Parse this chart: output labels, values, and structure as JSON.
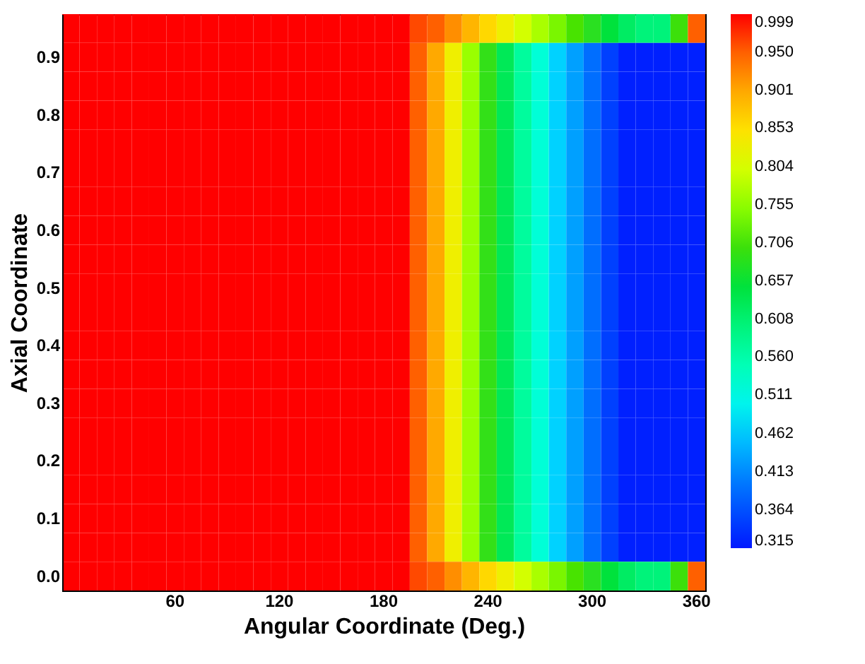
{
  "chart_data": {
    "type": "heatmap",
    "xlabel": "Angular Coordinate  (Deg.)",
    "ylabel": "Axial Coordinate",
    "categories": [
      null,
      null,
      null,
      null,
      null,
      null,
      "60",
      null,
      null,
      null,
      null,
      null,
      "120",
      null,
      null,
      null,
      null,
      null,
      "180",
      null,
      null,
      null,
      null,
      null,
      "240",
      null,
      null,
      null,
      null,
      null,
      "300",
      null,
      null,
      null,
      null,
      null,
      "360"
    ],
    "y_categories": [
      null,
      "0.9",
      null,
      "0.8",
      null,
      "0.7",
      null,
      "0.6",
      null,
      "0.5",
      null,
      "0.4",
      null,
      "0.3",
      null,
      "0.2",
      null,
      "0.1",
      null,
      "0.0"
    ],
    "cells": [
      [
        0.999,
        0.999,
        0.999,
        0.999,
        0.999,
        0.999,
        0.999,
        0.999,
        0.999,
        0.999,
        0.999,
        0.999,
        0.999,
        0.999,
        0.999,
        0.999,
        0.999,
        0.999,
        0.999,
        0.999,
        0.97,
        0.95,
        0.92,
        0.89,
        0.86,
        0.83,
        0.8,
        0.77,
        0.74,
        0.71,
        0.68,
        0.65,
        0.62,
        0.6,
        0.6,
        0.7,
        0.95
      ],
      [
        0.999,
        0.999,
        0.999,
        0.999,
        0.999,
        0.999,
        0.999,
        0.999,
        0.999,
        0.999,
        0.999,
        0.999,
        0.999,
        0.999,
        0.999,
        0.999,
        0.999,
        0.999,
        0.999,
        0.999,
        0.95,
        0.9,
        0.83,
        0.76,
        0.69,
        0.63,
        0.57,
        0.52,
        0.47,
        0.43,
        0.39,
        0.35,
        0.32,
        0.32,
        0.32,
        0.32,
        0.32
      ],
      [
        0.999,
        0.999,
        0.999,
        0.999,
        0.999,
        0.999,
        0.999,
        0.999,
        0.999,
        0.999,
        0.999,
        0.999,
        0.999,
        0.999,
        0.999,
        0.999,
        0.999,
        0.999,
        0.999,
        0.999,
        0.95,
        0.9,
        0.83,
        0.76,
        0.69,
        0.63,
        0.57,
        0.52,
        0.47,
        0.43,
        0.39,
        0.35,
        0.32,
        0.32,
        0.32,
        0.32,
        0.32
      ],
      [
        0.999,
        0.999,
        0.999,
        0.999,
        0.999,
        0.999,
        0.999,
        0.999,
        0.999,
        0.999,
        0.999,
        0.999,
        0.999,
        0.999,
        0.999,
        0.999,
        0.999,
        0.999,
        0.999,
        0.999,
        0.95,
        0.9,
        0.83,
        0.76,
        0.69,
        0.63,
        0.57,
        0.52,
        0.47,
        0.43,
        0.39,
        0.35,
        0.32,
        0.32,
        0.32,
        0.32,
        0.32
      ],
      [
        0.999,
        0.999,
        0.999,
        0.999,
        0.999,
        0.999,
        0.999,
        0.999,
        0.999,
        0.999,
        0.999,
        0.999,
        0.999,
        0.999,
        0.999,
        0.999,
        0.999,
        0.999,
        0.999,
        0.999,
        0.95,
        0.9,
        0.83,
        0.76,
        0.69,
        0.63,
        0.57,
        0.52,
        0.47,
        0.43,
        0.39,
        0.35,
        0.32,
        0.32,
        0.32,
        0.32,
        0.32
      ],
      [
        0.999,
        0.999,
        0.999,
        0.999,
        0.999,
        0.999,
        0.999,
        0.999,
        0.999,
        0.999,
        0.999,
        0.999,
        0.999,
        0.999,
        0.999,
        0.999,
        0.999,
        0.999,
        0.999,
        0.999,
        0.95,
        0.9,
        0.83,
        0.76,
        0.69,
        0.63,
        0.57,
        0.52,
        0.47,
        0.43,
        0.39,
        0.35,
        0.32,
        0.32,
        0.32,
        0.32,
        0.32
      ],
      [
        0.999,
        0.999,
        0.999,
        0.999,
        0.999,
        0.999,
        0.999,
        0.999,
        0.999,
        0.999,
        0.999,
        0.999,
        0.999,
        0.999,
        0.999,
        0.999,
        0.999,
        0.999,
        0.999,
        0.999,
        0.95,
        0.9,
        0.83,
        0.76,
        0.69,
        0.63,
        0.57,
        0.52,
        0.47,
        0.43,
        0.39,
        0.35,
        0.32,
        0.32,
        0.32,
        0.32,
        0.32
      ],
      [
        0.999,
        0.999,
        0.999,
        0.999,
        0.999,
        0.999,
        0.999,
        0.999,
        0.999,
        0.999,
        0.999,
        0.999,
        0.999,
        0.999,
        0.999,
        0.999,
        0.999,
        0.999,
        0.999,
        0.999,
        0.95,
        0.9,
        0.83,
        0.76,
        0.69,
        0.63,
        0.57,
        0.52,
        0.47,
        0.43,
        0.39,
        0.35,
        0.32,
        0.32,
        0.32,
        0.32,
        0.32
      ],
      [
        0.999,
        0.999,
        0.999,
        0.999,
        0.999,
        0.999,
        0.999,
        0.999,
        0.999,
        0.999,
        0.999,
        0.999,
        0.999,
        0.999,
        0.999,
        0.999,
        0.999,
        0.999,
        0.999,
        0.999,
        0.95,
        0.9,
        0.83,
        0.76,
        0.69,
        0.63,
        0.57,
        0.52,
        0.47,
        0.43,
        0.39,
        0.35,
        0.32,
        0.32,
        0.32,
        0.32,
        0.32
      ],
      [
        0.999,
        0.999,
        0.999,
        0.999,
        0.999,
        0.999,
        0.999,
        0.999,
        0.999,
        0.999,
        0.999,
        0.999,
        0.999,
        0.999,
        0.999,
        0.999,
        0.999,
        0.999,
        0.999,
        0.999,
        0.95,
        0.9,
        0.83,
        0.76,
        0.69,
        0.63,
        0.57,
        0.52,
        0.47,
        0.43,
        0.39,
        0.35,
        0.32,
        0.32,
        0.32,
        0.32,
        0.32
      ],
      [
        0.999,
        0.999,
        0.999,
        0.999,
        0.999,
        0.999,
        0.999,
        0.999,
        0.999,
        0.999,
        0.999,
        0.999,
        0.999,
        0.999,
        0.999,
        0.999,
        0.999,
        0.999,
        0.999,
        0.999,
        0.95,
        0.9,
        0.83,
        0.76,
        0.69,
        0.63,
        0.57,
        0.52,
        0.47,
        0.43,
        0.39,
        0.35,
        0.32,
        0.32,
        0.32,
        0.32,
        0.32
      ],
      [
        0.999,
        0.999,
        0.999,
        0.999,
        0.999,
        0.999,
        0.999,
        0.999,
        0.999,
        0.999,
        0.999,
        0.999,
        0.999,
        0.999,
        0.999,
        0.999,
        0.999,
        0.999,
        0.999,
        0.999,
        0.95,
        0.9,
        0.83,
        0.76,
        0.69,
        0.63,
        0.57,
        0.52,
        0.47,
        0.43,
        0.39,
        0.35,
        0.32,
        0.32,
        0.32,
        0.32,
        0.32
      ],
      [
        0.999,
        0.999,
        0.999,
        0.999,
        0.999,
        0.999,
        0.999,
        0.999,
        0.999,
        0.999,
        0.999,
        0.999,
        0.999,
        0.999,
        0.999,
        0.999,
        0.999,
        0.999,
        0.999,
        0.999,
        0.95,
        0.9,
        0.83,
        0.76,
        0.69,
        0.63,
        0.57,
        0.52,
        0.47,
        0.43,
        0.39,
        0.35,
        0.32,
        0.32,
        0.32,
        0.32,
        0.32
      ],
      [
        0.999,
        0.999,
        0.999,
        0.999,
        0.999,
        0.999,
        0.999,
        0.999,
        0.999,
        0.999,
        0.999,
        0.999,
        0.999,
        0.999,
        0.999,
        0.999,
        0.999,
        0.999,
        0.999,
        0.999,
        0.95,
        0.9,
        0.83,
        0.76,
        0.69,
        0.63,
        0.57,
        0.52,
        0.47,
        0.43,
        0.39,
        0.35,
        0.32,
        0.32,
        0.32,
        0.32,
        0.32
      ],
      [
        0.999,
        0.999,
        0.999,
        0.999,
        0.999,
        0.999,
        0.999,
        0.999,
        0.999,
        0.999,
        0.999,
        0.999,
        0.999,
        0.999,
        0.999,
        0.999,
        0.999,
        0.999,
        0.999,
        0.999,
        0.95,
        0.9,
        0.83,
        0.76,
        0.69,
        0.63,
        0.57,
        0.52,
        0.47,
        0.43,
        0.39,
        0.35,
        0.32,
        0.32,
        0.32,
        0.32,
        0.32
      ],
      [
        0.999,
        0.999,
        0.999,
        0.999,
        0.999,
        0.999,
        0.999,
        0.999,
        0.999,
        0.999,
        0.999,
        0.999,
        0.999,
        0.999,
        0.999,
        0.999,
        0.999,
        0.999,
        0.999,
        0.999,
        0.95,
        0.9,
        0.83,
        0.76,
        0.69,
        0.63,
        0.57,
        0.52,
        0.47,
        0.43,
        0.39,
        0.35,
        0.32,
        0.32,
        0.32,
        0.32,
        0.32
      ],
      [
        0.999,
        0.999,
        0.999,
        0.999,
        0.999,
        0.999,
        0.999,
        0.999,
        0.999,
        0.999,
        0.999,
        0.999,
        0.999,
        0.999,
        0.999,
        0.999,
        0.999,
        0.999,
        0.999,
        0.999,
        0.95,
        0.9,
        0.83,
        0.76,
        0.69,
        0.63,
        0.57,
        0.52,
        0.47,
        0.43,
        0.39,
        0.35,
        0.32,
        0.32,
        0.32,
        0.32,
        0.32
      ],
      [
        0.999,
        0.999,
        0.999,
        0.999,
        0.999,
        0.999,
        0.999,
        0.999,
        0.999,
        0.999,
        0.999,
        0.999,
        0.999,
        0.999,
        0.999,
        0.999,
        0.999,
        0.999,
        0.999,
        0.999,
        0.95,
        0.9,
        0.83,
        0.76,
        0.69,
        0.63,
        0.57,
        0.52,
        0.47,
        0.43,
        0.39,
        0.35,
        0.32,
        0.32,
        0.32,
        0.32,
        0.32
      ],
      [
        0.999,
        0.999,
        0.999,
        0.999,
        0.999,
        0.999,
        0.999,
        0.999,
        0.999,
        0.999,
        0.999,
        0.999,
        0.999,
        0.999,
        0.999,
        0.999,
        0.999,
        0.999,
        0.999,
        0.999,
        0.95,
        0.9,
        0.83,
        0.76,
        0.69,
        0.63,
        0.57,
        0.52,
        0.47,
        0.43,
        0.39,
        0.35,
        0.32,
        0.32,
        0.32,
        0.32,
        0.32
      ],
      [
        0.999,
        0.999,
        0.999,
        0.999,
        0.999,
        0.999,
        0.999,
        0.999,
        0.999,
        0.999,
        0.999,
        0.999,
        0.999,
        0.999,
        0.999,
        0.999,
        0.999,
        0.999,
        0.999,
        0.999,
        0.97,
        0.95,
        0.92,
        0.89,
        0.86,
        0.83,
        0.8,
        0.77,
        0.74,
        0.71,
        0.68,
        0.65,
        0.62,
        0.6,
        0.6,
        0.7,
        0.95
      ]
    ],
    "cticks": [
      0.315,
      0.364,
      0.413,
      0.462,
      0.511,
      {
        "value": 0.56,
        "label": "0.560"
      },
      0.608,
      0.657,
      0.706,
      0.755,
      0.804,
      0.853,
      0.901,
      {
        "value": 0.95,
        "label": "0.950"
      },
      0.999
    ],
    "colors": [
      "#0018ff",
      "#0a4bff",
      "#1e88ff",
      "#00c8ff",
      "#00ffe0",
      "#00ffa8",
      "#00f070",
      "#00e030",
      "#40e000",
      "#90ff00",
      "#d8ff00",
      "#ffe000",
      "#ffa800",
      "#ff6000",
      "#ff0000"
    ],
    "grid": false
  }
}
